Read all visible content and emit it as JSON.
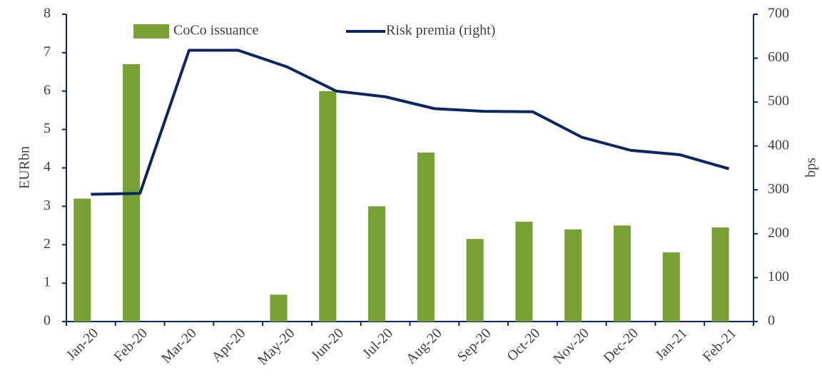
{
  "chart_data": {
    "type": "bar",
    "ylabel": "EURbn",
    "y2label": "bps",
    "legend": "top",
    "categories": [
      "Jan-20",
      "Feb-20",
      "Mar-20",
      "Apr-20",
      "May-20",
      "Jun-20",
      "Jul-20",
      "Aug-20",
      "Sep-20",
      "Oct-20",
      "Nov-20",
      "Dec-20",
      "Jan-21",
      "Feb-21"
    ],
    "series": [
      {
        "name": "CoCo issuance",
        "type": "bar",
        "color": "#77a035",
        "values": [
          3.2,
          6.7,
          0,
          0,
          0.7,
          6.0,
          3.0,
          4.4,
          2.15,
          2.6,
          2.4,
          2.5,
          1.8,
          2.45
        ]
      },
      {
        "name": "Risk premia (right)",
        "type": "line",
        "axis": "y2",
        "color": "#0b2660",
        "values": [
          290,
          292,
          618,
          618,
          580,
          525,
          512,
          485,
          479,
          478,
          420,
          390,
          380,
          348
        ]
      }
    ],
    "ylim": [
      0,
      8
    ],
    "yticks": [
      0,
      1,
      2,
      3,
      4,
      5,
      6,
      7,
      8
    ],
    "y2lim": [
      0,
      700
    ],
    "y2ticks": [
      0,
      100,
      200,
      300,
      400,
      500,
      600,
      700
    ]
  }
}
